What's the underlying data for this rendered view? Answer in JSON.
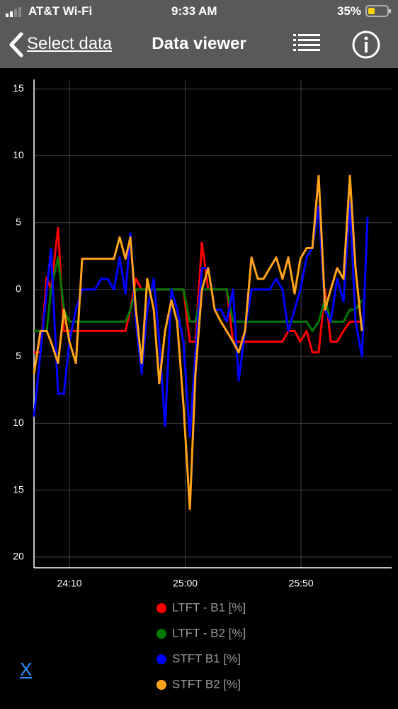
{
  "status_bar": {
    "carrier": "AT&T Wi-Fi",
    "time": "9:33 AM",
    "battery": "35%"
  },
  "nav": {
    "back": "Select data",
    "title": "Data viewer"
  },
  "chart_data": {
    "type": "line",
    "x": [
      1434.7,
      1437.5,
      1440.2,
      1442.0,
      1445.1,
      1447.6,
      1450.0,
      1452.8,
      1455.5,
      1458.3,
      1461.0,
      1463.8,
      1466.5,
      1469.2,
      1471.7,
      1474.2,
      1476.3,
      1478.7,
      1481.2,
      1483.6,
      1486.4,
      1488.8,
      1491.3,
      1494.0,
      1496.5,
      1499.2,
      1502.0,
      1504.4,
      1507.2,
      1509.9,
      1512.7,
      1515.4,
      1517.9,
      1520.6,
      1523.1,
      1525.8,
      1528.6,
      1531.3,
      1533.8,
      1536.5,
      1539.3,
      1542.0,
      1544.5,
      1547.2,
      1549.7,
      1552.4,
      1554.9,
      1557.6,
      1560.4,
      1562.8,
      1565.6,
      1568.3,
      1571.1,
      1573.5,
      1576.3,
      1578.7
    ],
    "series": [
      {
        "name": "LTFT - B1 [%]",
        "color": "#ff0000",
        "values": [
          -4.7,
          -4.7,
          0.9,
          0,
          4.6,
          -3.1,
          -3.1,
          -3.1,
          -3.1,
          -3.1,
          -3.1,
          -3.1,
          -3.1,
          -3.1,
          -3.1,
          -3.1,
          -1.5,
          0.8,
          0,
          0,
          0,
          0,
          0,
          0,
          0,
          0,
          -3.9,
          -3.9,
          3.5,
          0,
          0,
          0,
          0,
          -3.9,
          -3.9,
          -3.9,
          -3.9,
          -3.9,
          -3.9,
          -3.9,
          -3.9,
          -3.9,
          -3.1,
          -3.1,
          -3.9,
          -3.1,
          -4.7,
          -4.7,
          0,
          -3.9,
          -3.9,
          -3.1,
          -2.4,
          -2.4,
          -2.4,
          null
        ]
      },
      {
        "name": "LTFT - B2 [%]",
        "color": "#007a00",
        "values": [
          -3.1,
          -3.1,
          -3.1,
          0,
          2.4,
          -1.5,
          -2.4,
          -2.4,
          -2.4,
          -2.4,
          -2.4,
          -2.4,
          -2.4,
          -2.4,
          -2.4,
          -2.4,
          -1.5,
          0,
          0,
          0,
          0,
          0,
          0,
          0,
          0,
          0,
          -2.4,
          -2.4,
          0,
          0,
          0,
          0,
          0,
          -2.4,
          -2.4,
          -2.4,
          -2.4,
          -2.4,
          -2.4,
          -2.4,
          -2.4,
          -2.4,
          -2.4,
          -2.4,
          -2.4,
          -2.4,
          -3.1,
          -2.4,
          -0.7,
          -2.4,
          -2.4,
          -2.4,
          -1.5,
          -1.5,
          -0.8,
          null
        ]
      },
      {
        "name": "STFT B1 [%]",
        "color": "#0000ff",
        "values": [
          -9.5,
          -4.7,
          0,
          3,
          -7.8,
          -7.8,
          -3.9,
          -1.5,
          0,
          0,
          0,
          0.8,
          0.8,
          0,
          2.4,
          -0.3,
          4.2,
          -2.4,
          -6.3,
          -1.5,
          0.8,
          -3.9,
          -10.2,
          0,
          -1.5,
          -3.9,
          -11,
          -4.7,
          1.6,
          1.6,
          -1.5,
          -1.5,
          -2.4,
          0,
          -6.8,
          -3.1,
          0,
          0,
          0,
          0,
          0.8,
          0,
          -3.1,
          -1.5,
          0,
          2.4,
          3.1,
          6.2,
          -1.5,
          -2.4,
          0.8,
          -0.9,
          6.5,
          -2.4,
          -5,
          5.4
        ]
      },
      {
        "name": "STFT B2 [%]",
        "color": "#ffa31a",
        "values": [
          -6.3,
          -3.1,
          -3.1,
          -3.9,
          -5.5,
          -1.5,
          -3.9,
          -5.5,
          2.3,
          2.3,
          2.3,
          2.3,
          2.3,
          2.3,
          3.9,
          2.3,
          3.9,
          -1.5,
          -5.5,
          0.8,
          -1.5,
          -7,
          -3.1,
          -0.8,
          -2.4,
          -8.6,
          -16.4,
          -6.3,
          0,
          1.6,
          -1.5,
          -2.4,
          -3.1,
          -3.9,
          -4.7,
          -3.1,
          2.4,
          0.8,
          0.8,
          1.6,
          2.4,
          0.8,
          2.4,
          -0.3,
          2.3,
          3.1,
          3.1,
          8.5,
          -1.5,
          0,
          1.6,
          0.8,
          8.5,
          1.6,
          -3.1,
          null
        ]
      }
    ],
    "xlim": [
      1434.7,
      1589.1
    ],
    "ylim": [
      -20.8,
      15.7
    ],
    "xticks": [
      {
        "value": 1450,
        "label": "24:10"
      },
      {
        "value": 1500,
        "label": "25:00"
      },
      {
        "value": 1550,
        "label": "25:50"
      }
    ],
    "yticks": [
      15,
      10,
      5,
      0,
      {
        "value": -5,
        "label": "5"
      },
      {
        "value": -10,
        "label": "10"
      },
      {
        "value": -15,
        "label": "15"
      },
      {
        "value": -20,
        "label": "20"
      }
    ],
    "grid": true
  },
  "footer": {
    "close": "X"
  }
}
